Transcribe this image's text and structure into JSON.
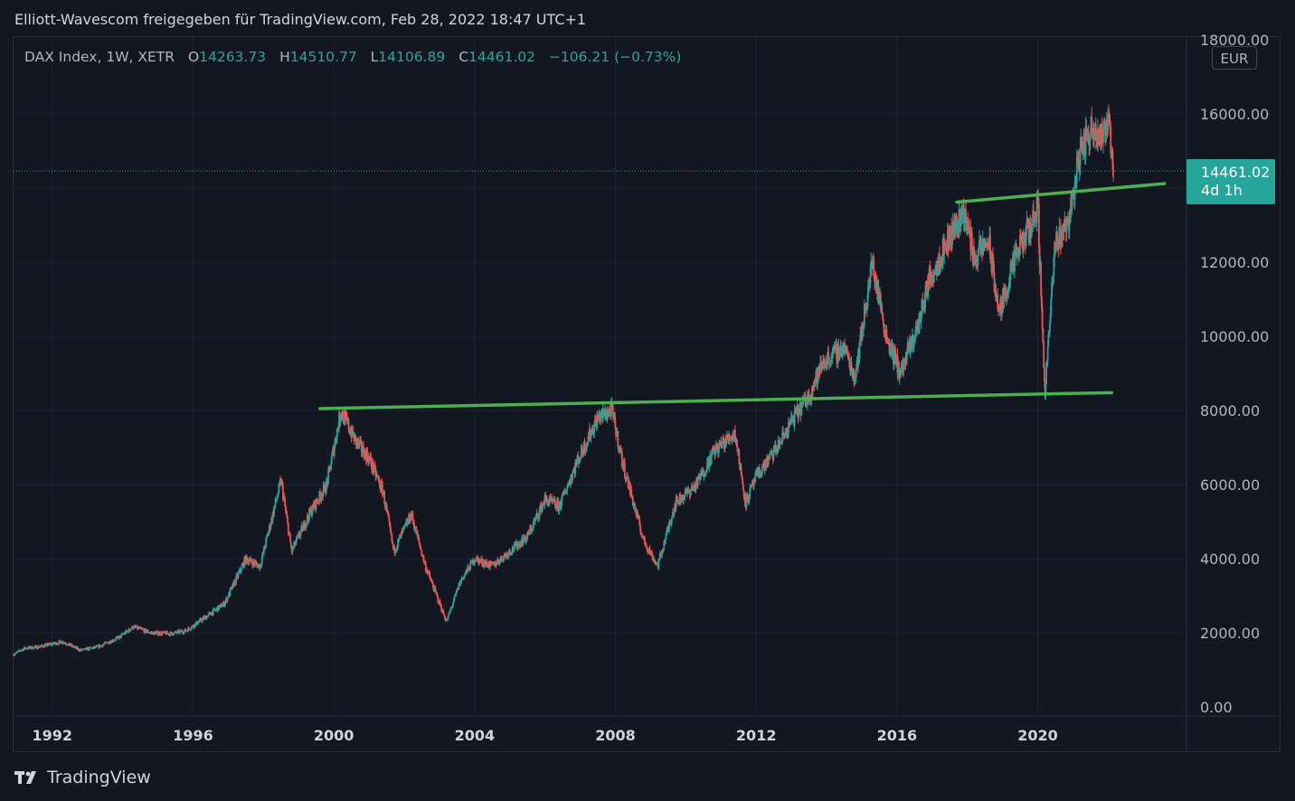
{
  "caption": "Elliott-Wavescom freigegeben für TradingView.com, Feb 28, 2022 18:47 UTC+1",
  "brand": {
    "name": "TradingView",
    "icon": "tradingview-logo-icon"
  },
  "currency_button": "EUR",
  "legend": {
    "symbol": "DAX Index, 1W, XETR",
    "open_label": "O",
    "open": "14263.73",
    "high_label": "H",
    "high": "14510.77",
    "low_label": "L",
    "low": "14106.89",
    "close_label": "C",
    "close": "14461.02",
    "change": "−106.21 (−0.73%)"
  },
  "last_price": {
    "value": "14461.02",
    "countdown": "4d 1h"
  },
  "colors": {
    "background": "#131722",
    "grid": "#1f2330",
    "up": "#26a69a",
    "down": "#ef5350",
    "trendline": "#4caf50",
    "text": "#d1d4dc"
  },
  "chart_data": {
    "type": "candlestick",
    "x_axis": {
      "ticks": [
        "1992",
        "1996",
        "2000",
        "2004",
        "2008",
        "2012",
        "2016",
        "2020"
      ],
      "range": [
        1990.9,
        2024.2
      ]
    },
    "y_axis": {
      "ticks": [
        "0.00",
        "2000.00",
        "4000.00",
        "6000.00",
        "8000.00",
        "10000.00",
        "12000.00",
        "16000.00",
        "18000.00"
      ],
      "range": [
        0,
        18000
      ]
    },
    "price_path": [
      [
        1990.9,
        1420
      ],
      [
        1991.2,
        1580
      ],
      [
        1991.6,
        1620
      ],
      [
        1992.3,
        1760
      ],
      [
        1992.8,
        1530
      ],
      [
        1993.3,
        1620
      ],
      [
        1993.9,
        1880
      ],
      [
        1994.3,
        2160
      ],
      [
        1994.8,
        2000
      ],
      [
        1995.4,
        1980
      ],
      [
        1995.8,
        2060
      ],
      [
        1996.5,
        2520
      ],
      [
        1996.9,
        2800
      ],
      [
        1997.5,
        4000
      ],
      [
        1997.9,
        3800
      ],
      [
        1998.5,
        6100
      ],
      [
        1998.8,
        4200
      ],
      [
        1999.3,
        5200
      ],
      [
        1999.8,
        6000
      ],
      [
        2000.2,
        8000
      ],
      [
        2000.6,
        7200
      ],
      [
        2001.0,
        6700
      ],
      [
        2001.4,
        5800
      ],
      [
        2001.7,
        4200
      ],
      [
        2002.2,
        5200
      ],
      [
        2002.6,
        3800
      ],
      [
        2003.2,
        2300
      ],
      [
        2003.6,
        3400
      ],
      [
        2004.0,
        4000
      ],
      [
        2004.5,
        3800
      ],
      [
        2005.0,
        4200
      ],
      [
        2005.5,
        4600
      ],
      [
        2006.0,
        5600
      ],
      [
        2006.4,
        5400
      ],
      [
        2006.9,
        6600
      ],
      [
        2007.5,
        7800
      ],
      [
        2007.9,
        8000
      ],
      [
        2008.2,
        6600
      ],
      [
        2008.8,
        4500
      ],
      [
        2009.2,
        3800
      ],
      [
        2009.7,
        5500
      ],
      [
        2010.3,
        6000
      ],
      [
        2010.8,
        6900
      ],
      [
        2011.4,
        7400
      ],
      [
        2011.7,
        5500
      ],
      [
        2012.0,
        6200
      ],
      [
        2012.6,
        7000
      ],
      [
        2013.0,
        7700
      ],
      [
        2013.5,
        8400
      ],
      [
        2013.9,
        9300
      ],
      [
        2014.5,
        9700
      ],
      [
        2014.8,
        8900
      ],
      [
        2015.3,
        12000
      ],
      [
        2015.7,
        10000
      ],
      [
        2016.1,
        9000
      ],
      [
        2016.6,
        10300
      ],
      [
        2016.9,
        11500
      ],
      [
        2017.5,
        12700
      ],
      [
        2017.9,
        13400
      ],
      [
        2018.2,
        12100
      ],
      [
        2018.6,
        12600
      ],
      [
        2018.9,
        10600
      ],
      [
        2019.4,
        12200
      ],
      [
        2019.9,
        13200
      ],
      [
        2020.0,
        13600
      ],
      [
        2020.2,
        8500
      ],
      [
        2020.5,
        12500
      ],
      [
        2020.9,
        13200
      ],
      [
        2021.2,
        15000
      ],
      [
        2021.6,
        15700
      ],
      [
        2021.9,
        15300
      ],
      [
        2022.0,
        16200
      ],
      [
        2022.15,
        14461
      ]
    ],
    "trendlines": [
      {
        "from": [
          1999.6,
          8050
        ],
        "to": [
          2022.1,
          8480
        ]
      },
      {
        "from": [
          2017.7,
          13620
        ],
        "to": [
          2023.6,
          14120
        ]
      }
    ],
    "last_price": 14461.02,
    "grid": true
  }
}
